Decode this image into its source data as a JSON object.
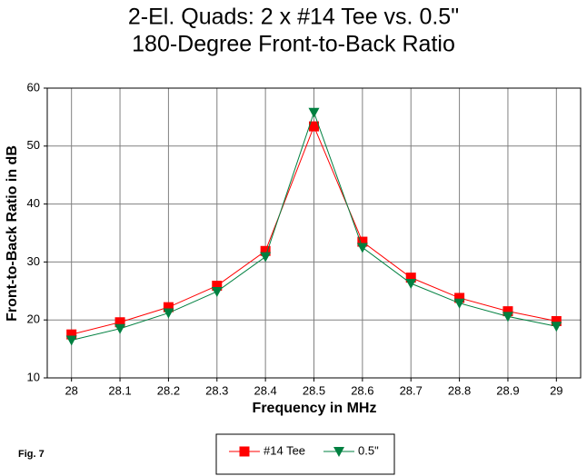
{
  "chart_data": {
    "type": "line",
    "title": [
      "2-El. Quads:  2 x #14 Tee vs. 0.5\"",
      "180-Degree Front-to-Back Ratio"
    ],
    "x_label": "Frequency in MHz",
    "y_label": "Front-to-Back Ratio in dB",
    "annotation": "Fig. 7",
    "x": [
      28,
      28.1,
      28.2,
      28.3,
      28.4,
      28.5,
      28.6,
      28.7,
      28.8,
      28.9,
      29
    ],
    "xlim": [
      27.95,
      29.05
    ],
    "xticks": [
      28,
      28.1,
      28.2,
      28.3,
      28.4,
      28.5,
      28.6,
      28.7,
      28.8,
      28.9,
      29
    ],
    "ylim": [
      10,
      60
    ],
    "yticks": [
      10,
      20,
      30,
      40,
      50,
      60
    ],
    "grid": true,
    "series": [
      {
        "name": "#14 Tee",
        "color": "#ff0000",
        "marker": "square",
        "values": [
          17.5,
          19.6,
          22.2,
          25.9,
          31.9,
          53.4,
          33.5,
          27.3,
          23.8,
          21.5,
          19.8
        ]
      },
      {
        "name": "0.5\"",
        "color": "#008040",
        "marker": "triangle-down",
        "values": [
          16.5,
          18.5,
          21.2,
          24.9,
          30.9,
          55.8,
          32.5,
          26.3,
          22.9,
          20.6,
          18.9
        ]
      }
    ]
  }
}
